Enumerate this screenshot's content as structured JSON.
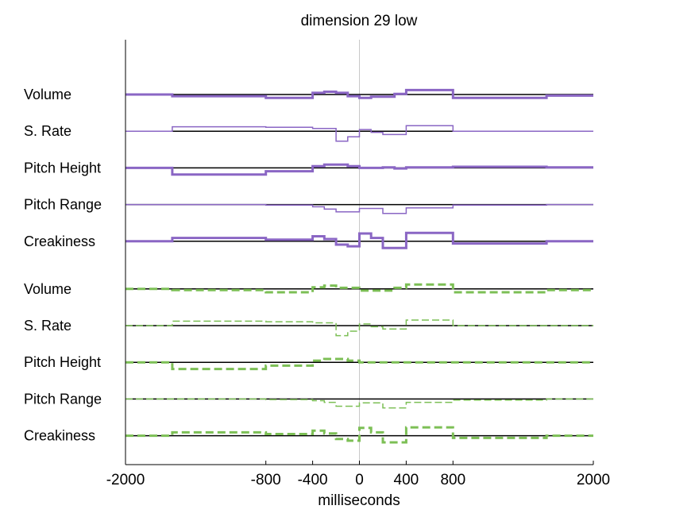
{
  "chart_data": {
    "type": "line",
    "title": "dimension 29 low",
    "xlabel": "milliseconds",
    "xlim": [
      -2000,
      2000
    ],
    "xticks": [
      -2000,
      -800,
      -400,
      0,
      400,
      800,
      2000
    ],
    "grid": false,
    "colors": {
      "purple": "#8a66c4",
      "green": "#7cbf55",
      "baseline": "#000000",
      "zero_line": "#c8c8c8"
    },
    "groups": [
      {
        "color": "purple",
        "dashed": false,
        "rows": [
          {
            "label": "Volume",
            "thick": true,
            "points": [
              [
                -2000,
                0
              ],
              [
                -1600,
                0
              ],
              [
                -1600,
                -0.3
              ],
              [
                -800,
                -0.3
              ],
              [
                -800,
                -0.6
              ],
              [
                -400,
                -0.6
              ],
              [
                -400,
                0.3
              ],
              [
                -300,
                0.3
              ],
              [
                -300,
                0.5
              ],
              [
                -200,
                0.5
              ],
              [
                -200,
                0.3
              ],
              [
                -100,
                0.3
              ],
              [
                -100,
                -0.3
              ],
              [
                0,
                -0.3
              ],
              [
                0,
                -0.6
              ],
              [
                100,
                -0.6
              ],
              [
                100,
                -0.4
              ],
              [
                300,
                -0.4
              ],
              [
                300,
                0.1
              ],
              [
                400,
                0.1
              ],
              [
                400,
                0.8
              ],
              [
                800,
                0.8
              ],
              [
                800,
                -0.6
              ],
              [
                1600,
                -0.6
              ],
              [
                1600,
                -0.2
              ],
              [
                2000,
                -0.2
              ]
            ]
          },
          {
            "label": "S. Rate",
            "thick": false,
            "points": [
              [
                -2000,
                0
              ],
              [
                -1600,
                0
              ],
              [
                -1600,
                0.8
              ],
              [
                -800,
                0.8
              ],
              [
                -800,
                0.7
              ],
              [
                -400,
                0.7
              ],
              [
                -400,
                0.5
              ],
              [
                -200,
                0.5
              ],
              [
                -200,
                -1.8
              ],
              [
                -100,
                -1.8
              ],
              [
                -100,
                -1.0
              ],
              [
                0,
                -1.0
              ],
              [
                0,
                0.3
              ],
              [
                100,
                0.3
              ],
              [
                100,
                -0.2
              ],
              [
                200,
                -0.2
              ],
              [
                200,
                -0.6
              ],
              [
                400,
                -0.6
              ],
              [
                400,
                1.0
              ],
              [
                800,
                1.0
              ],
              [
                800,
                0
              ],
              [
                2000,
                0
              ]
            ]
          },
          {
            "label": "Pitch Height",
            "thick": true,
            "points": [
              [
                -2000,
                0
              ],
              [
                -1600,
                0
              ],
              [
                -1600,
                -1.2
              ],
              [
                -800,
                -1.2
              ],
              [
                -800,
                -0.6
              ],
              [
                -400,
                -0.6
              ],
              [
                -400,
                0.3
              ],
              [
                -300,
                0.3
              ],
              [
                -300,
                0.6
              ],
              [
                -100,
                0.6
              ],
              [
                -100,
                0.3
              ],
              [
                0,
                0.3
              ],
              [
                0,
                0
              ],
              [
                200,
                0
              ],
              [
                200,
                0.1
              ],
              [
                300,
                0.1
              ],
              [
                300,
                -0.1
              ],
              [
                400,
                -0.1
              ],
              [
                400,
                0.1
              ],
              [
                800,
                0.1
              ],
              [
                800,
                0.2
              ],
              [
                1600,
                0.2
              ],
              [
                1600,
                0.1
              ],
              [
                2000,
                0.1
              ]
            ]
          },
          {
            "label": "Pitch Range",
            "thick": false,
            "points": [
              [
                -2000,
                0
              ],
              [
                -800,
                0
              ],
              [
                -800,
                -0.1
              ],
              [
                -400,
                -0.1
              ],
              [
                -400,
                -0.4
              ],
              [
                -300,
                -0.4
              ],
              [
                -300,
                -0.8
              ],
              [
                -200,
                -0.8
              ],
              [
                -200,
                -1.3
              ],
              [
                0,
                -1.3
              ],
              [
                0,
                -0.7
              ],
              [
                200,
                -0.7
              ],
              [
                200,
                -1.6
              ],
              [
                400,
                -1.6
              ],
              [
                400,
                -0.6
              ],
              [
                800,
                -0.6
              ],
              [
                800,
                -0.1
              ],
              [
                1600,
                -0.1
              ],
              [
                1600,
                0
              ],
              [
                2000,
                0
              ]
            ]
          },
          {
            "label": "Creakiness",
            "thick": true,
            "points": [
              [
                -2000,
                0
              ],
              [
                -1600,
                0
              ],
              [
                -1600,
                0.6
              ],
              [
                -800,
                0.6
              ],
              [
                -800,
                0.3
              ],
              [
                -400,
                0.3
              ],
              [
                -400,
                0.9
              ],
              [
                -300,
                0.9
              ],
              [
                -300,
                0.4
              ],
              [
                -200,
                0.4
              ],
              [
                -200,
                -0.6
              ],
              [
                -100,
                -0.6
              ],
              [
                -100,
                -0.9
              ],
              [
                0,
                -0.9
              ],
              [
                0,
                1.4
              ],
              [
                100,
                1.4
              ],
              [
                100,
                0.6
              ],
              [
                200,
                0.6
              ],
              [
                200,
                -1.2
              ],
              [
                400,
                -1.2
              ],
              [
                400,
                1.5
              ],
              [
                800,
                1.5
              ],
              [
                800,
                -0.4
              ],
              [
                1600,
                -0.4
              ],
              [
                1600,
                0
              ],
              [
                2000,
                0
              ]
            ]
          }
        ]
      },
      {
        "color": "green",
        "dashed": true,
        "rows": [
          {
            "label": "Volume",
            "thick": true,
            "points": [
              [
                -2000,
                0
              ],
              [
                -1600,
                0
              ],
              [
                -1600,
                -0.2
              ],
              [
                -800,
                -0.2
              ],
              [
                -800,
                -0.6
              ],
              [
                -400,
                -0.6
              ],
              [
                -400,
                0.3
              ],
              [
                -300,
                0.3
              ],
              [
                -300,
                0.6
              ],
              [
                -200,
                0.6
              ],
              [
                -200,
                0.2
              ],
              [
                0,
                0.2
              ],
              [
                0,
                -0.3
              ],
              [
                300,
                -0.3
              ],
              [
                300,
                0.2
              ],
              [
                400,
                0.2
              ],
              [
                400,
                0.8
              ],
              [
                800,
                0.8
              ],
              [
                800,
                -0.6
              ],
              [
                1600,
                -0.6
              ],
              [
                1600,
                -0.2
              ],
              [
                2000,
                -0.2
              ]
            ]
          },
          {
            "label": "S. Rate",
            "thick": false,
            "points": [
              [
                -2000,
                0
              ],
              [
                -1600,
                0
              ],
              [
                -1600,
                0.8
              ],
              [
                -800,
                0.8
              ],
              [
                -800,
                0.7
              ],
              [
                -400,
                0.7
              ],
              [
                -400,
                0.5
              ],
              [
                -200,
                0.5
              ],
              [
                -200,
                -1.8
              ],
              [
                -100,
                -1.8
              ],
              [
                -100,
                -1.0
              ],
              [
                0,
                -1.0
              ],
              [
                0,
                0.3
              ],
              [
                100,
                0.3
              ],
              [
                100,
                -0.2
              ],
              [
                200,
                -0.2
              ],
              [
                200,
                -0.6
              ],
              [
                400,
                -0.6
              ],
              [
                400,
                1.0
              ],
              [
                800,
                1.0
              ],
              [
                800,
                0
              ],
              [
                2000,
                0
              ]
            ]
          },
          {
            "label": "Pitch Height",
            "thick": true,
            "points": [
              [
                -2000,
                0
              ],
              [
                -1600,
                0
              ],
              [
                -1600,
                -1.2
              ],
              [
                -800,
                -1.2
              ],
              [
                -800,
                -0.6
              ],
              [
                -400,
                -0.6
              ],
              [
                -400,
                0.3
              ],
              [
                -300,
                0.3
              ],
              [
                -300,
                0.6
              ],
              [
                -100,
                0.6
              ],
              [
                -100,
                0.3
              ],
              [
                0,
                0.3
              ],
              [
                0,
                0
              ],
              [
                2000,
                0
              ]
            ]
          },
          {
            "label": "Pitch Range",
            "thick": false,
            "points": [
              [
                -2000,
                0
              ],
              [
                -800,
                0
              ],
              [
                -800,
                -0.1
              ],
              [
                -400,
                -0.1
              ],
              [
                -400,
                -0.3
              ],
              [
                -300,
                -0.3
              ],
              [
                -300,
                -0.6
              ],
              [
                -200,
                -0.6
              ],
              [
                -200,
                -1.3
              ],
              [
                0,
                -1.3
              ],
              [
                0,
                -0.7
              ],
              [
                200,
                -0.7
              ],
              [
                200,
                -1.6
              ],
              [
                400,
                -1.6
              ],
              [
                400,
                -0.6
              ],
              [
                800,
                -0.6
              ],
              [
                800,
                -0.2
              ],
              [
                1600,
                -0.2
              ],
              [
                1600,
                0
              ],
              [
                2000,
                0
              ]
            ]
          },
          {
            "label": "Creakiness",
            "thick": true,
            "points": [
              [
                -2000,
                0
              ],
              [
                -1600,
                0
              ],
              [
                -1600,
                0.6
              ],
              [
                -800,
                0.6
              ],
              [
                -800,
                0.3
              ],
              [
                -400,
                0.3
              ],
              [
                -400,
                0.9
              ],
              [
                -300,
                0.9
              ],
              [
                -300,
                0.4
              ],
              [
                -200,
                0.4
              ],
              [
                -200,
                -0.6
              ],
              [
                -100,
                -0.6
              ],
              [
                -100,
                -0.9
              ],
              [
                0,
                -0.9
              ],
              [
                0,
                1.4
              ],
              [
                100,
                1.4
              ],
              [
                100,
                0.6
              ],
              [
                200,
                0.6
              ],
              [
                200,
                -1.2
              ],
              [
                400,
                -1.2
              ],
              [
                400,
                1.5
              ],
              [
                800,
                1.5
              ],
              [
                800,
                -0.4
              ],
              [
                1600,
                -0.4
              ],
              [
                1600,
                0
              ],
              [
                2000,
                0
              ]
            ]
          }
        ]
      }
    ]
  }
}
